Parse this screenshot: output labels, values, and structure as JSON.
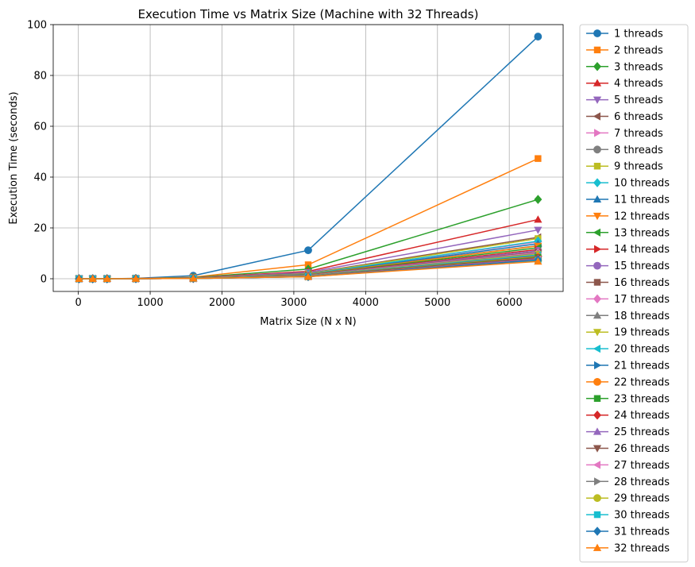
{
  "chart_data": {
    "type": "line",
    "title": "Execution Time vs Matrix Size (Machine with 32 Threads)",
    "xlabel": "Matrix Size (N x N)",
    "ylabel": "Execution Time (seconds)",
    "xlim": [
      -350,
      6750
    ],
    "ylim": [
      -5,
      100
    ],
    "xticks": [
      0,
      1000,
      2000,
      3000,
      4000,
      5000,
      6000
    ],
    "yticks": [
      0,
      20,
      40,
      60,
      80,
      100
    ],
    "grid": true,
    "legend_position": "outside-right",
    "x": [
      10,
      200,
      400,
      800,
      1600,
      3200,
      6400
    ],
    "series": [
      {
        "name": "1 threads",
        "color": "#1f77b4",
        "marker": "circle",
        "values": [
          0,
          0,
          0,
          0.15,
          1.2,
          11.2,
          95.3
        ]
      },
      {
        "name": "2 threads",
        "color": "#ff7f0e",
        "marker": "square",
        "values": [
          0,
          0,
          0,
          0.1,
          0.6,
          5.5,
          47.3
        ]
      },
      {
        "name": "3 threads",
        "color": "#2ca02c",
        "marker": "diamond",
        "values": [
          0,
          0,
          0,
          0.08,
          0.45,
          3.8,
          31.2
        ]
      },
      {
        "name": "4 threads",
        "color": "#d62728",
        "marker": "triangle-up",
        "values": [
          0,
          0,
          0,
          0.07,
          0.35,
          2.9,
          23.3
        ]
      },
      {
        "name": "5 threads",
        "color": "#9467bd",
        "marker": "triangle-down",
        "values": [
          0,
          0,
          0,
          0.06,
          0.3,
          2.5,
          19.2
        ]
      },
      {
        "name": "6 threads",
        "color": "#8c564b",
        "marker": "triangle-left",
        "values": [
          0,
          0,
          0,
          0.05,
          0.26,
          2.1,
          16.3
        ]
      },
      {
        "name": "7 threads",
        "color": "#e377c2",
        "marker": "triangle-right",
        "values": [
          0,
          0,
          0,
          0.05,
          0.24,
          1.9,
          14.5
        ]
      },
      {
        "name": "8 threads",
        "color": "#7f7f7f",
        "marker": "circle",
        "values": [
          0,
          0,
          0,
          0.05,
          0.22,
          1.8,
          13.0
        ]
      },
      {
        "name": "9 threads",
        "color": "#bcbd22",
        "marker": "square",
        "values": [
          0,
          0,
          0,
          0.05,
          0.22,
          1.9,
          15.8
        ]
      },
      {
        "name": "10 threads",
        "color": "#17becf",
        "marker": "diamond",
        "values": [
          0,
          0,
          0,
          0.05,
          0.21,
          1.8,
          14.8
        ]
      },
      {
        "name": "11 threads",
        "color": "#1f77b4",
        "marker": "triangle-up",
        "values": [
          0,
          0,
          0,
          0.04,
          0.2,
          1.7,
          13.8
        ]
      },
      {
        "name": "12 threads",
        "color": "#ff7f0e",
        "marker": "triangle-down",
        "values": [
          0,
          0,
          0,
          0.04,
          0.19,
          1.6,
          12.9
        ]
      },
      {
        "name": "13 threads",
        "color": "#2ca02c",
        "marker": "triangle-left",
        "values": [
          0,
          0,
          0,
          0.04,
          0.18,
          1.5,
          12.2
        ]
      },
      {
        "name": "14 threads",
        "color": "#d62728",
        "marker": "triangle-right",
        "values": [
          0,
          0,
          0,
          0.04,
          0.17,
          1.4,
          11.5
        ]
      },
      {
        "name": "15 threads",
        "color": "#9467bd",
        "marker": "circle",
        "values": [
          0,
          0,
          0,
          0.04,
          0.16,
          1.35,
          11.0
        ]
      },
      {
        "name": "16 threads",
        "color": "#8c564b",
        "marker": "square",
        "values": [
          0,
          0,
          0,
          0.04,
          0.15,
          1.3,
          10.5
        ]
      },
      {
        "name": "17 threads",
        "color": "#e377c2",
        "marker": "diamond",
        "values": [
          0,
          0,
          0,
          0.03,
          0.15,
          1.25,
          10.2
        ]
      },
      {
        "name": "18 threads",
        "color": "#7f7f7f",
        "marker": "triangle-up",
        "values": [
          0,
          0,
          0,
          0.03,
          0.14,
          1.2,
          9.9
        ]
      },
      {
        "name": "19 threads",
        "color": "#bcbd22",
        "marker": "triangle-down",
        "values": [
          0,
          0,
          0,
          0.03,
          0.14,
          1.15,
          9.6
        ]
      },
      {
        "name": "20 threads",
        "color": "#17becf",
        "marker": "triangle-left",
        "values": [
          0,
          0,
          0,
          0.03,
          0.13,
          1.1,
          9.3
        ]
      },
      {
        "name": "21 threads",
        "color": "#1f77b4",
        "marker": "triangle-right",
        "values": [
          0,
          0,
          0,
          0.03,
          0.13,
          1.05,
          9.0
        ]
      },
      {
        "name": "22 threads",
        "color": "#ff7f0e",
        "marker": "circle",
        "values": [
          0,
          0,
          0,
          0.03,
          0.12,
          1.0,
          8.7
        ]
      },
      {
        "name": "23 threads",
        "color": "#2ca02c",
        "marker": "square",
        "values": [
          0,
          0,
          0,
          0.03,
          0.12,
          0.98,
          8.4
        ]
      },
      {
        "name": "24 threads",
        "color": "#d62728",
        "marker": "diamond",
        "values": [
          0,
          0,
          0,
          0.03,
          0.11,
          0.95,
          8.1
        ]
      },
      {
        "name": "25 threads",
        "color": "#9467bd",
        "marker": "triangle-up",
        "values": [
          0,
          0,
          0,
          0.03,
          0.11,
          0.92,
          7.9
        ]
      },
      {
        "name": "26 threads",
        "color": "#8c564b",
        "marker": "triangle-down",
        "values": [
          0,
          0,
          0,
          0.03,
          0.11,
          0.9,
          7.7
        ]
      },
      {
        "name": "27 threads",
        "color": "#e377c2",
        "marker": "triangle-left",
        "values": [
          0,
          0,
          0,
          0.03,
          0.1,
          0.88,
          7.5
        ]
      },
      {
        "name": "28 threads",
        "color": "#7f7f7f",
        "marker": "triangle-right",
        "values": [
          0,
          0,
          0,
          0.03,
          0.1,
          0.86,
          7.3
        ]
      },
      {
        "name": "29 threads",
        "color": "#bcbd22",
        "marker": "circle",
        "values": [
          0,
          0,
          0,
          0.03,
          0.1,
          0.84,
          7.2
        ]
      },
      {
        "name": "30 threads",
        "color": "#17becf",
        "marker": "square",
        "values": [
          0,
          0,
          0,
          0.03,
          0.1,
          0.83,
          7.1
        ]
      },
      {
        "name": "31 threads",
        "color": "#1f77b4",
        "marker": "diamond",
        "values": [
          0,
          0,
          0,
          0.03,
          0.1,
          0.82,
          7.4
        ]
      },
      {
        "name": "32 threads",
        "color": "#ff7f0e",
        "marker": "triangle-up",
        "values": [
          0,
          0,
          0,
          0.03,
          0.1,
          0.8,
          6.8
        ]
      }
    ]
  }
}
